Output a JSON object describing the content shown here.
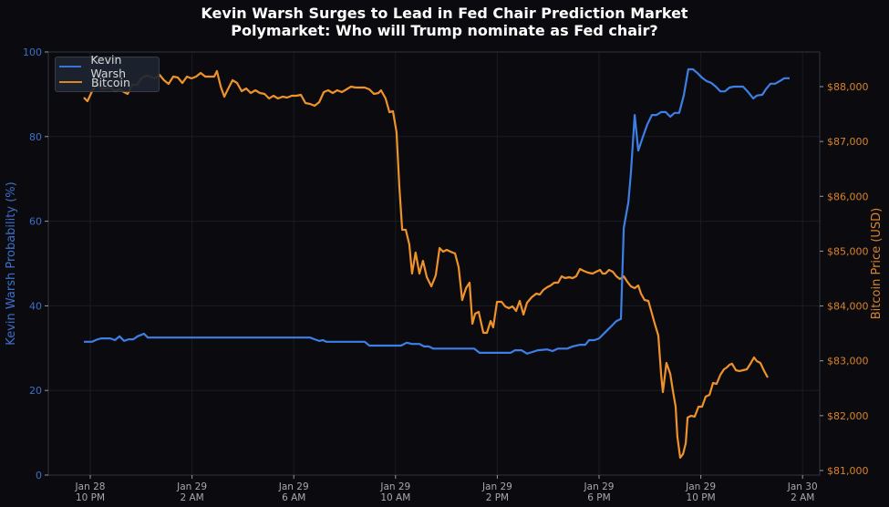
{
  "title": {
    "line1": "Kevin Warsh Surges to Lead in Fed Chair Prediction Market",
    "line2": "Polymarket: Who will Trump nominate as Fed chair?"
  },
  "colors": {
    "background": "#0b0b0f",
    "warsh": "#3d7fe6",
    "bitcoin": "#f0922a",
    "left_axis_text": "#3d6fc8",
    "right_axis_text": "#d9822b",
    "tick_text": "#a8a8a8",
    "grid": "#1a1c22",
    "frame": "#2e3440"
  },
  "legend": {
    "items": [
      {
        "label": "Kevin Warsh",
        "color": "#3d7fe6"
      },
      {
        "label": "Bitcoin",
        "color": "#f0922a"
      }
    ]
  },
  "axes": {
    "left_label": "Kevin Warsh Probability (%)",
    "right_label": "Bitcoin Price (USD)",
    "left_ticks": [
      "0",
      "20",
      "40",
      "60",
      "80",
      "100"
    ],
    "right_ticks": [
      "$81,000",
      "$82,000",
      "$83,000",
      "$84,000",
      "$85,000",
      "$86,000",
      "$87,000",
      "$88,000"
    ],
    "x_ticks": [
      {
        "date": "Jan 28",
        "time": "10 PM"
      },
      {
        "date": "Jan 29",
        "time": "2 AM"
      },
      {
        "date": "Jan 29",
        "time": "6 AM"
      },
      {
        "date": "Jan 29",
        "time": "10 AM"
      },
      {
        "date": "Jan 29",
        "time": "2 PM"
      },
      {
        "date": "Jan 29",
        "time": "6 PM"
      },
      {
        "date": "Jan 29",
        "time": "10 PM"
      },
      {
        "date": "Jan 30",
        "time": "2 AM"
      }
    ]
  },
  "chart_data": {
    "type": "line",
    "title": "Kevin Warsh Surges to Lead in Fed Chair Prediction Market",
    "subtitle": "Polymarket: Who will Trump nominate as Fed chair?",
    "xlabel": "",
    "x_unit": "hours since Jan 28 10 PM",
    "x_ticks": [
      "Jan 28 10 PM",
      "Jan 29 2 AM",
      "Jan 29 6 AM",
      "Jan 29 10 AM",
      "Jan 29 2 PM",
      "Jan 29 6 PM",
      "Jan 29 10 PM",
      "Jan 30 2 AM"
    ],
    "xlim": [
      -1.65,
      28.7
    ],
    "grid": true,
    "legend_position": "upper left",
    "y_left": {
      "label": "Kevin Warsh Probability (%)",
      "ylim": [
        0,
        100
      ]
    },
    "y_right": {
      "label": "Bitcoin Price (USD)",
      "ylim": [
        80918,
        88635
      ]
    },
    "series": [
      {
        "name": "Kevin Warsh",
        "axis": "left",
        "color": "#3d7fe6",
        "points": [
          [
            -0.25,
            31.5
          ],
          [
            -0.11,
            31.5
          ],
          [
            0.07,
            31.5
          ],
          [
            0.25,
            32.0
          ],
          [
            0.43,
            32.3
          ],
          [
            0.61,
            32.3
          ],
          [
            0.79,
            32.3
          ],
          [
            0.97,
            31.9
          ],
          [
            1.15,
            32.8
          ],
          [
            1.33,
            31.7
          ],
          [
            1.51,
            32.1
          ],
          [
            1.69,
            32.1
          ],
          [
            1.86,
            32.8
          ],
          [
            2.11,
            33.4
          ],
          [
            2.26,
            32.5
          ],
          [
            3.62,
            32.5
          ],
          [
            8.64,
            32.5
          ],
          [
            8.82,
            32.1
          ],
          [
            9.0,
            31.7
          ],
          [
            9.14,
            31.9
          ],
          [
            9.28,
            31.5
          ],
          [
            10.79,
            31.5
          ],
          [
            10.97,
            30.6
          ],
          [
            12.22,
            30.6
          ],
          [
            12.44,
            31.3
          ],
          [
            12.65,
            31.0
          ],
          [
            12.94,
            31.0
          ],
          [
            13.12,
            30.4
          ],
          [
            13.3,
            30.4
          ],
          [
            13.48,
            29.9
          ],
          [
            15.09,
            29.9
          ],
          [
            15.3,
            28.9
          ],
          [
            16.52,
            28.9
          ],
          [
            16.7,
            29.5
          ],
          [
            16.95,
            29.5
          ],
          [
            17.17,
            28.7
          ],
          [
            17.38,
            29.1
          ],
          [
            17.6,
            29.5
          ],
          [
            17.96,
            29.7
          ],
          [
            18.17,
            29.3
          ],
          [
            18.39,
            29.9
          ],
          [
            18.75,
            29.9
          ],
          [
            18.96,
            30.4
          ],
          [
            19.25,
            30.8
          ],
          [
            19.46,
            30.8
          ],
          [
            19.61,
            31.9
          ],
          [
            19.82,
            31.9
          ],
          [
            20.0,
            32.3
          ],
          [
            20.25,
            33.8
          ],
          [
            20.47,
            35.1
          ],
          [
            20.68,
            36.4
          ],
          [
            20.86,
            36.9
          ],
          [
            20.97,
            58.4
          ],
          [
            21.15,
            64.4
          ],
          [
            21.25,
            71.3
          ],
          [
            21.4,
            85.1
          ],
          [
            21.54,
            76.7
          ],
          [
            21.72,
            79.9
          ],
          [
            21.9,
            82.9
          ],
          [
            22.08,
            85.1
          ],
          [
            22.26,
            85.1
          ],
          [
            22.44,
            85.8
          ],
          [
            22.62,
            85.8
          ],
          [
            22.8,
            84.7
          ],
          [
            22.97,
            85.6
          ],
          [
            23.15,
            85.6
          ],
          [
            23.33,
            89.7
          ],
          [
            23.51,
            95.9
          ],
          [
            23.69,
            95.9
          ],
          [
            23.87,
            95.0
          ],
          [
            24.05,
            93.9
          ],
          [
            24.23,
            93.1
          ],
          [
            24.41,
            92.7
          ],
          [
            24.59,
            91.8
          ],
          [
            24.77,
            90.7
          ],
          [
            24.95,
            90.7
          ],
          [
            25.13,
            91.6
          ],
          [
            25.3,
            91.8
          ],
          [
            25.48,
            91.8
          ],
          [
            25.66,
            91.8
          ],
          [
            25.84,
            90.7
          ],
          [
            26.06,
            89.0
          ],
          [
            26.2,
            89.7
          ],
          [
            26.42,
            89.9
          ],
          [
            26.56,
            91.2
          ],
          [
            26.74,
            92.5
          ],
          [
            26.92,
            92.5
          ],
          [
            27.1,
            93.1
          ],
          [
            27.28,
            93.8
          ],
          [
            27.49,
            93.8
          ]
        ]
      },
      {
        "name": "Bitcoin",
        "axis": "right",
        "color": "#f0922a",
        "points": [
          [
            -0.25,
            87800
          ],
          [
            -0.11,
            87734
          ],
          [
            0.07,
            87917
          ],
          [
            0.25,
            88050
          ],
          [
            0.43,
            87967
          ],
          [
            0.61,
            87967
          ],
          [
            0.79,
            87984
          ],
          [
            0.97,
            87917
          ],
          [
            1.15,
            87950
          ],
          [
            1.33,
            87900
          ],
          [
            1.47,
            87867
          ],
          [
            1.65,
            88033
          ],
          [
            1.83,
            88033
          ],
          [
            2.01,
            88150
          ],
          [
            2.19,
            88200
          ],
          [
            2.37,
            88183
          ],
          [
            2.54,
            88150
          ],
          [
            2.72,
            88216
          ],
          [
            2.9,
            88116
          ],
          [
            3.08,
            88050
          ],
          [
            3.26,
            88183
          ],
          [
            3.44,
            88166
          ],
          [
            3.62,
            88066
          ],
          [
            3.8,
            88183
          ],
          [
            3.98,
            88150
          ],
          [
            4.16,
            88183
          ],
          [
            4.34,
            88250
          ],
          [
            4.52,
            88183
          ],
          [
            4.7,
            88183
          ],
          [
            4.87,
            88183
          ],
          [
            4.98,
            88283
          ],
          [
            5.13,
            88000
          ],
          [
            5.27,
            87817
          ],
          [
            5.41,
            87950
          ],
          [
            5.59,
            88116
          ],
          [
            5.77,
            88066
          ],
          [
            5.95,
            87917
          ],
          [
            6.13,
            87967
          ],
          [
            6.31,
            87884
          ],
          [
            6.49,
            87934
          ],
          [
            6.67,
            87884
          ],
          [
            6.85,
            87867
          ],
          [
            7.03,
            87784
          ],
          [
            7.2,
            87834
          ],
          [
            7.38,
            87784
          ],
          [
            7.56,
            87817
          ],
          [
            7.74,
            87800
          ],
          [
            7.92,
            87834
          ],
          [
            8.1,
            87834
          ],
          [
            8.28,
            87850
          ],
          [
            8.46,
            87701
          ],
          [
            8.64,
            87684
          ],
          [
            8.82,
            87651
          ],
          [
            9.0,
            87717
          ],
          [
            9.18,
            87900
          ],
          [
            9.35,
            87934
          ],
          [
            9.53,
            87884
          ],
          [
            9.71,
            87934
          ],
          [
            9.89,
            87900
          ],
          [
            10.07,
            87950
          ],
          [
            10.25,
            88000
          ],
          [
            10.43,
            87984
          ],
          [
            10.61,
            87984
          ],
          [
            10.79,
            87984
          ],
          [
            10.97,
            87950
          ],
          [
            11.15,
            87867
          ],
          [
            11.33,
            87884
          ],
          [
            11.43,
            87934
          ],
          [
            11.61,
            87784
          ],
          [
            11.76,
            87535
          ],
          [
            11.9,
            87551
          ],
          [
            12.04,
            87169
          ],
          [
            12.15,
            86171
          ],
          [
            12.26,
            85389
          ],
          [
            12.4,
            85389
          ],
          [
            12.54,
            85123
          ],
          [
            12.65,
            84591
          ],
          [
            12.79,
            84973
          ],
          [
            12.94,
            84591
          ],
          [
            13.08,
            84824
          ],
          [
            13.23,
            84524
          ],
          [
            13.41,
            84358
          ],
          [
            13.58,
            84558
          ],
          [
            13.73,
            85057
          ],
          [
            13.87,
            84990
          ],
          [
            14.01,
            85024
          ],
          [
            14.16,
            84990
          ],
          [
            14.34,
            84957
          ],
          [
            14.48,
            84707
          ],
          [
            14.62,
            84109
          ],
          [
            14.77,
            84325
          ],
          [
            14.91,
            84425
          ],
          [
            15.02,
            83677
          ],
          [
            15.13,
            83860
          ],
          [
            15.27,
            83893
          ],
          [
            15.45,
            83511
          ],
          [
            15.59,
            83511
          ],
          [
            15.74,
            83727
          ],
          [
            15.84,
            83610
          ],
          [
            15.99,
            84076
          ],
          [
            16.17,
            84076
          ],
          [
            16.31,
            83993
          ],
          [
            16.45,
            83960
          ],
          [
            16.6,
            83993
          ],
          [
            16.74,
            83910
          ],
          [
            16.88,
            84092
          ],
          [
            17.03,
            83843
          ],
          [
            17.17,
            84059
          ],
          [
            17.35,
            84159
          ],
          [
            17.53,
            84225
          ],
          [
            17.67,
            84209
          ],
          [
            17.81,
            84292
          ],
          [
            17.96,
            84342
          ],
          [
            18.1,
            84375
          ],
          [
            18.24,
            84425
          ],
          [
            18.39,
            84425
          ],
          [
            18.53,
            84541
          ],
          [
            18.67,
            84508
          ],
          [
            18.82,
            84524
          ],
          [
            18.96,
            84508
          ],
          [
            19.1,
            84541
          ],
          [
            19.25,
            84674
          ],
          [
            19.39,
            84641
          ],
          [
            19.57,
            84608
          ],
          [
            19.75,
            84591
          ],
          [
            19.89,
            84624
          ],
          [
            20.04,
            84657
          ],
          [
            20.14,
            84591
          ],
          [
            20.25,
            84591
          ],
          [
            20.39,
            84657
          ],
          [
            20.54,
            84624
          ],
          [
            20.68,
            84541
          ],
          [
            20.82,
            84491
          ],
          [
            20.97,
            84541
          ],
          [
            21.11,
            84441
          ],
          [
            21.25,
            84358
          ],
          [
            21.4,
            84325
          ],
          [
            21.54,
            84375
          ],
          [
            21.65,
            84225
          ],
          [
            21.79,
            84109
          ],
          [
            21.94,
            84092
          ],
          [
            22.04,
            83927
          ],
          [
            22.19,
            83677
          ],
          [
            22.33,
            83461
          ],
          [
            22.44,
            82746
          ],
          [
            22.51,
            82430
          ],
          [
            22.65,
            82962
          ],
          [
            22.8,
            82763
          ],
          [
            22.9,
            82463
          ],
          [
            23.01,
            82164
          ],
          [
            23.08,
            81616
          ],
          [
            23.19,
            81233
          ],
          [
            23.3,
            81300
          ],
          [
            23.41,
            81499
          ],
          [
            23.48,
            81965
          ],
          [
            23.62,
            81998
          ],
          [
            23.76,
            81982
          ],
          [
            23.91,
            82164
          ],
          [
            24.05,
            82164
          ],
          [
            24.19,
            82347
          ],
          [
            24.34,
            82380
          ],
          [
            24.48,
            82596
          ],
          [
            24.62,
            82580
          ],
          [
            24.77,
            82746
          ],
          [
            24.91,
            82846
          ],
          [
            25.02,
            82879
          ],
          [
            25.13,
            82929
          ],
          [
            25.23,
            82946
          ],
          [
            25.38,
            82829
          ],
          [
            25.52,
            82813
          ],
          [
            25.66,
            82829
          ],
          [
            25.81,
            82846
          ],
          [
            25.95,
            82946
          ],
          [
            26.09,
            83062
          ],
          [
            26.2,
            82995
          ],
          [
            26.34,
            82962
          ],
          [
            26.49,
            82813
          ],
          [
            26.63,
            82696
          ]
        ]
      }
    ]
  }
}
